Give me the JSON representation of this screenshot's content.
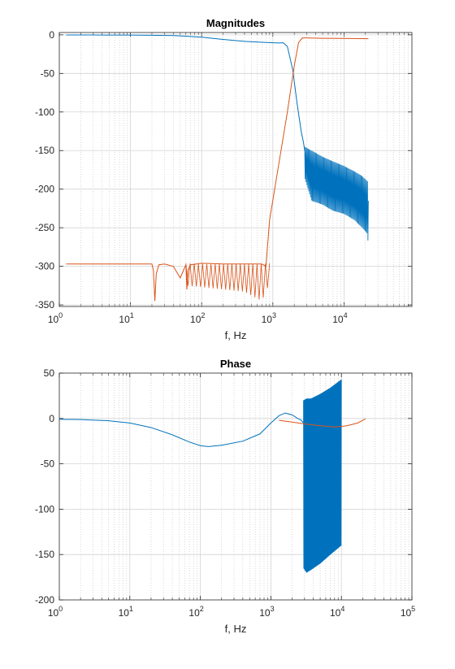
{
  "chart_data": [
    {
      "type": "line",
      "title": "Magnitudes",
      "xlabel": "f, Hz",
      "ylabel": "",
      "xscale": "log",
      "xlim": [
        1,
        90000
      ],
      "ylim": [
        -352,
        3
      ],
      "xticks": [
        1,
        10,
        100,
        1000,
        10000
      ],
      "yticks": [
        0,
        -50,
        -100,
        -150,
        -200,
        -250,
        -300,
        -350
      ],
      "grid": true,
      "colors": {
        "blue": "#0072BD",
        "orange": "#D95319"
      },
      "series": [
        {
          "color": "#0072BD",
          "x": [
            1.25,
            3,
            10,
            20,
            40,
            60,
            100,
            200,
            400,
            800,
            1200,
            1400,
            1600,
            1900,
            2200,
            2500,
            2700,
            2800
          ],
          "y": [
            -0.2,
            -0.2,
            -0.3,
            -0.5,
            -1,
            -1.7,
            -3,
            -6,
            -8.5,
            -9.9,
            -10.5,
            -10.3,
            -15,
            -45,
            -90,
            -125,
            -140,
            -150
          ],
          "band": {
            "x": [
              2800,
              3500,
              5000,
              7000,
              10000,
              14000,
              18000,
              21500,
              22000
            ],
            "upper": [
              -145,
              -150,
              -158,
              -164,
              -170,
              -177,
              -183,
              -190,
              -215
            ],
            "lower": [
              -185,
              -215,
              -220,
              -228,
              -232,
              -240,
              -250,
              -258,
              -282
            ]
          }
        },
        {
          "color": "#D95319",
          "x": [
            1.25,
            20,
            21,
            22,
            23,
            25,
            30,
            40,
            50,
            60,
            62,
            64,
            70,
            100,
            200,
            400,
            700,
            800,
            900,
            1200,
            1600,
            2000,
            2300,
            2600,
            3000,
            5000,
            10000,
            22000
          ],
          "y": [
            -297,
            -297,
            -305,
            -345,
            -310,
            -298,
            -297,
            -300,
            -315,
            -298,
            -330,
            -305,
            -298,
            -296,
            -297,
            -297,
            -297,
            -300,
            -240,
            -170,
            -100,
            -40,
            -10,
            -4,
            -4,
            -4.5,
            -4.7,
            -5
          ],
          "band": {
            "x": [
              60,
              100,
              200,
              400,
              700,
              900
            ],
            "upper": [
              -296,
              -297,
              -297,
              -297,
              -297,
              -296
            ],
            "lower": [
              -325,
              -327,
              -330,
              -333,
              -345,
              -322
            ]
          }
        }
      ]
    },
    {
      "type": "line",
      "title": "Phase",
      "xlabel": "f, Hz",
      "ylabel": "",
      "xscale": "log",
      "xlim": [
        1,
        100000
      ],
      "ylim": [
        -200,
        50
      ],
      "xticks": [
        1,
        10,
        100,
        1000,
        10000,
        100000
      ],
      "yticks": [
        50,
        0,
        -50,
        -100,
        -150,
        -200
      ],
      "grid": true,
      "colors": {
        "blue": "#0072BD",
        "orange": "#D95319"
      },
      "series": [
        {
          "color": "#0072BD",
          "x": [
            1,
            2,
            5,
            10,
            20,
            40,
            70,
            100,
            130,
            200,
            400,
            700,
            1000,
            1300,
            1600,
            2000,
            2400,
            2700,
            2900
          ],
          "y": [
            -1,
            -1.2,
            -2.5,
            -5,
            -10,
            -18,
            -26,
            -30,
            -31,
            -29.5,
            -25,
            -17,
            -5,
            3,
            6,
            4,
            0,
            -2,
            -5
          ],
          "band": {
            "x": [
              2900,
              3200,
              3700,
              5000,
              7000,
              10000
            ],
            "upper": [
              20,
              22,
              22,
              27,
              34,
              43
            ],
            "lower": [
              -165,
              -170,
              -167,
              -160,
              -150,
              -140
            ]
          }
        },
        {
          "color": "#D95319",
          "x": [
            1300,
            1600,
            2000,
            3000,
            5000,
            8000,
            12000,
            17000,
            22000
          ],
          "y": [
            -2,
            -3,
            -4,
            -6,
            -8,
            -9.5,
            -8,
            -5,
            -0.5
          ]
        }
      ]
    }
  ]
}
